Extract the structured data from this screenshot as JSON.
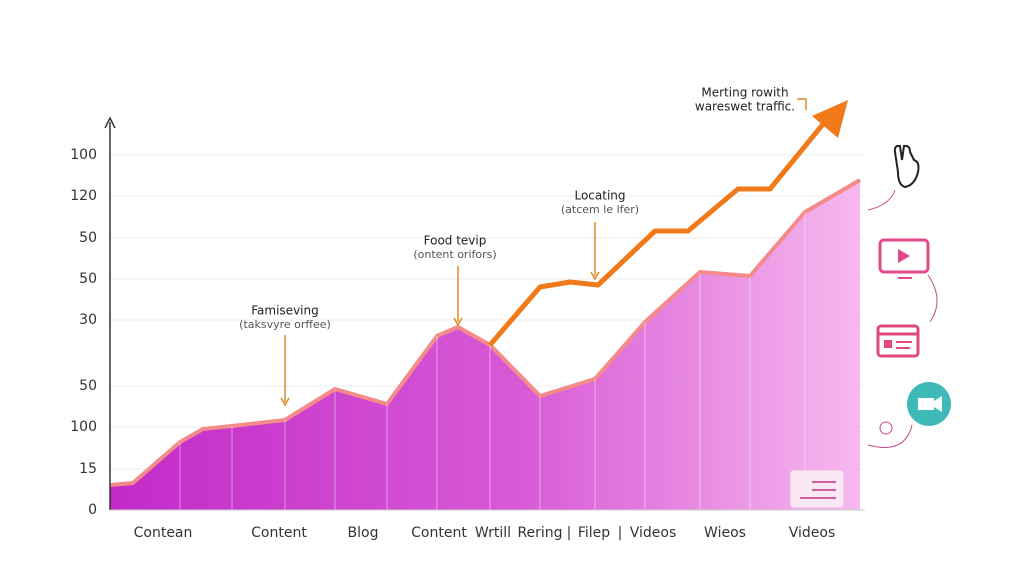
{
  "chart_data": {
    "type": "area",
    "y_axis_labels": [
      "100",
      "120",
      "50",
      "50",
      "30",
      "50",
      "100",
      "15",
      "0"
    ],
    "categories": [
      "Contean",
      "Content",
      "Blog",
      "Content",
      "Wrtill",
      "Rering",
      "|",
      "Filep",
      "|",
      "Videos",
      "Wieos",
      "Videos"
    ],
    "annotations": [
      {
        "title": "Famiseving",
        "text": "(taksvyre orffee)"
      },
      {
        "title": "Food tevip",
        "text": "(ontent orifors)"
      },
      {
        "title": "Locating",
        "text": "(atcem le lfer)"
      },
      {
        "title": "Merting rowith",
        "text": "wareswet traffic."
      }
    ]
  }
}
